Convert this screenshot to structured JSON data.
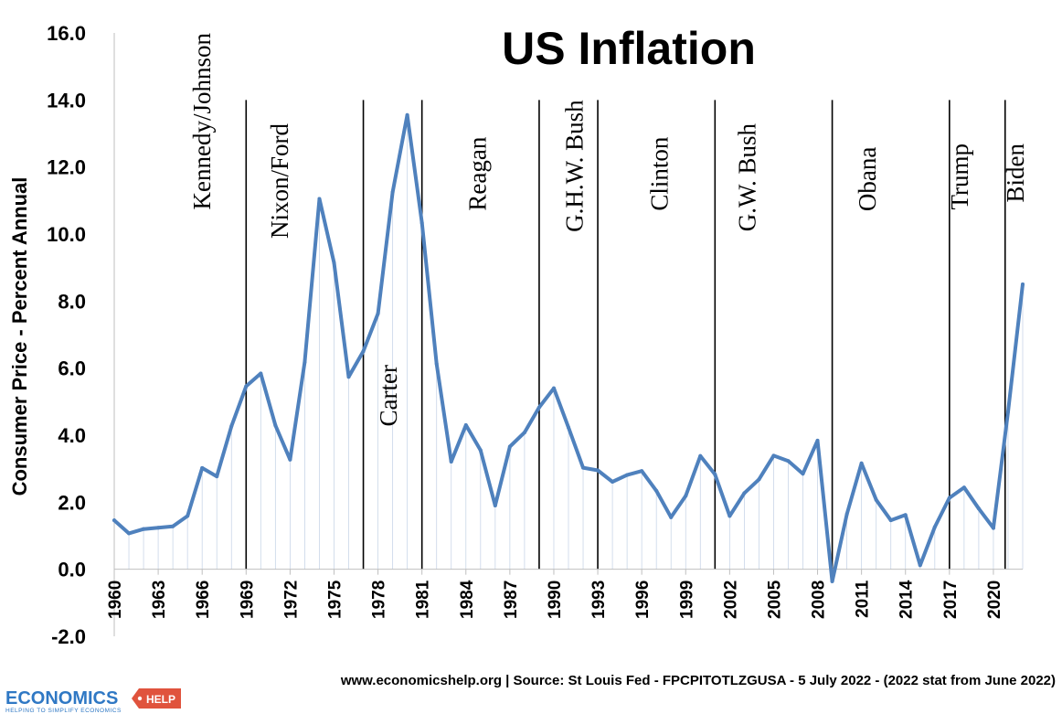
{
  "chart_data": {
    "type": "line",
    "title": "US Inflation",
    "xlabel": "",
    "ylabel": "Consumer Price - Percent Annual",
    "ylim": [
      -2.0,
      16.0
    ],
    "xlim": [
      1960,
      2022
    ],
    "yticks": [
      "16.0",
      "14.0",
      "12.0",
      "10.0",
      "8.0",
      "6.0",
      "4.0",
      "2.0",
      "0.0",
      "-2.0"
    ],
    "ytick_values": [
      16,
      14,
      12,
      10,
      8,
      6,
      4,
      2,
      0,
      -2
    ],
    "xticks": [
      "1960",
      "1963",
      "1966",
      "1969",
      "1972",
      "1975",
      "1978",
      "1981",
      "1984",
      "1987",
      "1990",
      "1993",
      "1996",
      "1999",
      "2002",
      "2005",
      "2008",
      "2011",
      "2014",
      "2017",
      "2020"
    ],
    "xtick_values": [
      1960,
      1963,
      1966,
      1969,
      1972,
      1975,
      1978,
      1981,
      1984,
      1987,
      1990,
      1993,
      1996,
      1999,
      2002,
      2005,
      2008,
      2011,
      2014,
      2017,
      2020
    ],
    "grid": "vertical",
    "line_color": "#4f81bd",
    "x": [
      1960,
      1961,
      1962,
      1963,
      1964,
      1965,
      1966,
      1967,
      1968,
      1969,
      1970,
      1971,
      1972,
      1973,
      1974,
      1975,
      1976,
      1977,
      1978,
      1979,
      1980,
      1981,
      1982,
      1983,
      1984,
      1985,
      1986,
      1987,
      1988,
      1989,
      1990,
      1991,
      1992,
      1993,
      1994,
      1995,
      1996,
      1997,
      1998,
      1999,
      2000,
      2001,
      2002,
      2003,
      2004,
      2005,
      2006,
      2007,
      2008,
      2009,
      2010,
      2011,
      2012,
      2013,
      2014,
      2015,
      2016,
      2017,
      2018,
      2019,
      2020,
      2021,
      2022
    ],
    "values": [
      1.46,
      1.07,
      1.2,
      1.24,
      1.28,
      1.59,
      3.02,
      2.77,
      4.27,
      5.46,
      5.84,
      4.29,
      3.27,
      6.18,
      11.05,
      9.14,
      5.74,
      6.5,
      7.63,
      11.25,
      13.55,
      10.33,
      6.13,
      3.21,
      4.3,
      3.55,
      1.9,
      3.66,
      4.08,
      4.83,
      5.4,
      4.23,
      3.03,
      2.95,
      2.61,
      2.81,
      2.93,
      2.34,
      1.55,
      2.19,
      3.38,
      2.83,
      1.59,
      2.27,
      2.68,
      3.39,
      3.23,
      2.85,
      3.84,
      -0.36,
      1.64,
      3.16,
      2.07,
      1.46,
      1.62,
      0.12,
      1.26,
      2.13,
      2.44,
      1.81,
      1.23,
      4.7,
      8.5
    ],
    "eras": [
      {
        "label": "Kennedy/Johnson",
        "x": 1966,
        "y": 16.0,
        "divider": null
      },
      {
        "label": "Nixon/Ford",
        "x": 1971.3,
        "y": 13.3,
        "divider": 1969
      },
      {
        "label": "Carter",
        "x": 1978.7,
        "y": 6.1,
        "divider": 1977
      },
      {
        "label": "Reagan",
        "x": 1984.8,
        "y": 12.9,
        "divider": 1981
      },
      {
        "label": "G.H.W. Bush",
        "x": 1991.4,
        "y": 14.0,
        "divider": 1989
      },
      {
        "label": "Clinton",
        "x": 1997.2,
        "y": 12.9,
        "divider": 1993
      },
      {
        "label": "G.W. Bush",
        "x": 2003.2,
        "y": 13.3,
        "divider": 2001
      },
      {
        "label": "Obana",
        "x": 2011.4,
        "y": 12.6,
        "divider": 2009
      },
      {
        "label": "Trump",
        "x": 2017.7,
        "y": 12.7,
        "divider": 2017
      },
      {
        "label": "Biden",
        "x": 2021.5,
        "y": 12.7,
        "divider": 2020.8
      }
    ]
  },
  "footer": {
    "source": "www.economicshelp.org | Source: St Louis Fed - FPCPITOTLZGUSA - 5 July 2022  - (2022 stat from June 2022)"
  },
  "logo": {
    "text": "ECONOMICS",
    "tag": "HELP",
    "subtitle": "HELPING TO SIMPLIFY ECONOMICS"
  }
}
